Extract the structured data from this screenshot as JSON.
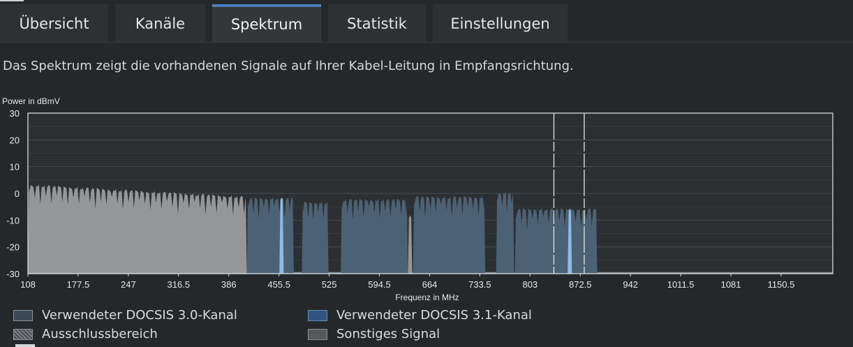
{
  "tabs": [
    {
      "label": "Übersicht",
      "active": false
    },
    {
      "label": "Kanäle",
      "active": false
    },
    {
      "label": "Spektrum",
      "active": true
    },
    {
      "label": "Statistik",
      "active": false
    },
    {
      "label": "Einstellungen",
      "active": false
    }
  ],
  "description": "Das Spektrum zeigt die vorhandenen Signale auf Ihrer Kabel-Leitung in Empfangsrichtung.",
  "chart_data": {
    "type": "area",
    "ylabel": "Power in dBmV",
    "xlabel": "Frequenz in MHz",
    "ylim": [
      -30,
      30
    ],
    "yticks": [
      "30",
      "20",
      "10",
      "0",
      "-10",
      "-20",
      "-30"
    ],
    "xlim": [
      108,
      1222
    ],
    "xticks": [
      "108",
      "177.5",
      "247",
      "316.5",
      "386",
      "455.5",
      "525",
      "594.5",
      "664",
      "733.5",
      "803",
      "872.5",
      "942",
      "1011.5",
      "1081",
      "1150.5"
    ],
    "grid": true,
    "exclusion_markers_mhz": [
      836,
      878
    ],
    "regions": [
      {
        "kind": "other",
        "from": 108,
        "to": 411,
        "level_start": 3.5,
        "level_end": -1
      },
      {
        "kind": "docsis30",
        "from": 411,
        "to": 476,
        "level": -1.5
      },
      {
        "kind": "docsis31",
        "from": 456,
        "to": 462,
        "level": -1.5
      },
      {
        "kind": "docsis30",
        "from": 487,
        "to": 524,
        "level": -3
      },
      {
        "kind": "docsis30",
        "from": 541,
        "to": 634,
        "level": -2
      },
      {
        "kind": "other",
        "from": 634,
        "to": 640,
        "level": -8
      },
      {
        "kind": "docsis30",
        "from": 641,
        "to": 741,
        "level": -1
      },
      {
        "kind": "docsis30",
        "from": 756,
        "to": 781,
        "level": 0.5
      },
      {
        "kind": "docsis30",
        "from": 782,
        "to": 896,
        "level": -5.5
      },
      {
        "kind": "docsis31",
        "from": 855,
        "to": 861,
        "level": -5.5
      }
    ],
    "legend": [
      {
        "label": "Verwendeter DOCSIS 3.0-Kanal",
        "kind": "docsis30"
      },
      {
        "label": "Verwendeter DOCSIS 3.1-Kanal",
        "kind": "docsis31"
      },
      {
        "label": "Ausschlussbereich",
        "kind": "exclusion"
      },
      {
        "label": "Sonstiges Signal",
        "kind": "other"
      }
    ],
    "colors": {
      "docsis30": "#4f6478",
      "docsis31": "#8cbbe4",
      "other": "#9a9c9e",
      "background": "#2c2f31",
      "grid": "#4a4e51",
      "frame": "#d8dadc"
    }
  }
}
